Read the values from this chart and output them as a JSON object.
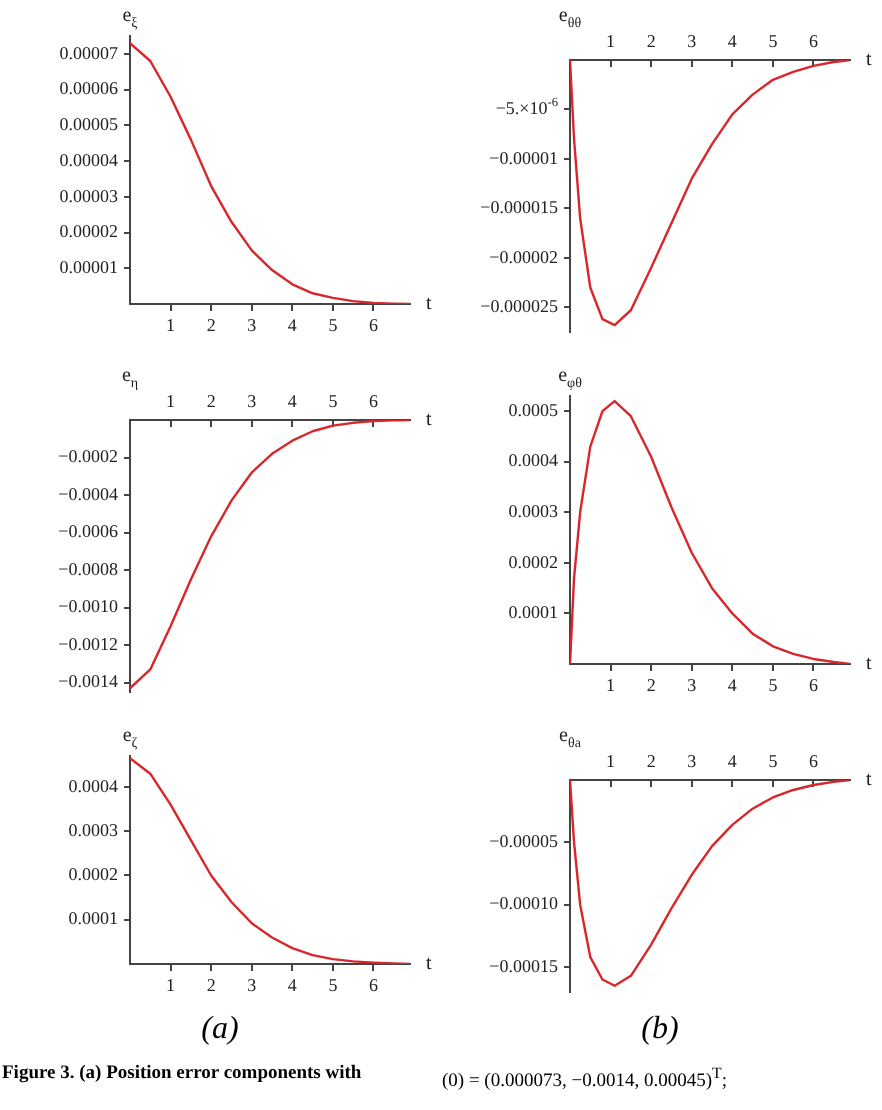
{
  "chart_data": [
    {
      "type": "line",
      "ylabel": "e$_{ξ}$",
      "xlabel": "t",
      "x": [
        0,
        0.5,
        1,
        1.5,
        2,
        2.5,
        3,
        3.5,
        4,
        4.5,
        5,
        5.5,
        6,
        6.5,
        6.9
      ],
      "series": [
        {
          "color": "#d9262b",
          "values": [
            7.3e-05,
            6.8e-05,
            5.8e-05,
            4.6e-05,
            3.3e-05,
            2.3e-05,
            1.5e-05,
            9.5e-06,
            5.5e-06,
            3e-06,
            1.7e-06,
            8e-07,
            3e-07,
            1e-07,
            0
          ]
        }
      ],
      "xlim": [
        0,
        6.9
      ],
      "ylim": [
        0,
        7.5e-05
      ],
      "xticks": [
        1,
        2,
        3,
        4,
        5,
        6
      ],
      "yticks": [
        {
          "value": 1e-05,
          "label": "0.00001"
        },
        {
          "value": 2e-05,
          "label": "0.00002"
        },
        {
          "value": 3e-05,
          "label": "0.00003"
        },
        {
          "value": 4e-05,
          "label": "0.00004"
        },
        {
          "value": 5e-05,
          "label": "0.00005"
        },
        {
          "value": 6e-05,
          "label": "0.00006"
        },
        {
          "value": 7e-05,
          "label": "0.00007"
        }
      ],
      "grid": false,
      "legend": false,
      "marker": "none",
      "line_style": "solid"
    },
    {
      "type": "line",
      "ylabel": "e$_{θθ}$",
      "xlabel": "t",
      "x": [
        0,
        0.1,
        0.25,
        0.5,
        0.8,
        1.1,
        1.5,
        2,
        2.5,
        3,
        3.5,
        4,
        4.5,
        5,
        5.5,
        6,
        6.5,
        6.9
      ],
      "series": [
        {
          "color": "#d9262b",
          "values": [
            0,
            -8e-06,
            -1.6e-05,
            -2.3e-05,
            -2.62e-05,
            -2.68e-05,
            -2.53e-05,
            -2.1e-05,
            -1.65e-05,
            -1.2e-05,
            -8.5e-06,
            -5.5e-06,
            -3.5e-06,
            -2e-06,
            -1.2e-06,
            -6e-07,
            -2e-07,
            0
          ]
        }
      ],
      "xlim": [
        0,
        6.9
      ],
      "ylim": [
        -2.75e-05,
        0
      ],
      "xticks": [
        1,
        2,
        3,
        4,
        5,
        6
      ],
      "yticks": [
        {
          "value": -5e-06,
          "label": "−5.×10$^{-6}$"
        },
        {
          "value": -1e-05,
          "label": "−0.00001"
        },
        {
          "value": -1.5e-05,
          "label": "−0.000015"
        },
        {
          "value": -2e-05,
          "label": "−0.00002"
        },
        {
          "value": -2.5e-05,
          "label": "−0.000025"
        }
      ],
      "grid": false,
      "legend": false,
      "marker": "none",
      "line_style": "solid"
    },
    {
      "type": "line",
      "ylabel": "e$_{η}$",
      "xlabel": "t",
      "x": [
        0,
        0.5,
        1,
        1.5,
        2,
        2.5,
        3,
        3.5,
        4,
        4.5,
        5,
        5.5,
        6,
        6.5,
        6.9
      ],
      "series": [
        {
          "color": "#d9262b",
          "values": [
            -0.00143,
            -0.00133,
            -0.0011,
            -0.00085,
            -0.00062,
            -0.00043,
            -0.00028,
            -0.00018,
            -0.00011,
            -6e-05,
            -3e-05,
            -1.5e-05,
            -6e-06,
            -2e-06,
            0
          ]
        }
      ],
      "xlim": [
        0,
        6.9
      ],
      "ylim": [
        -0.00145,
        0
      ],
      "xticks": [
        1,
        2,
        3,
        4,
        5,
        6
      ],
      "yticks": [
        {
          "value": -0.0002,
          "label": "−0.0002"
        },
        {
          "value": -0.0004,
          "label": "−0.0004"
        },
        {
          "value": -0.0006,
          "label": "−0.0006"
        },
        {
          "value": -0.0008,
          "label": "−0.0008"
        },
        {
          "value": -0.001,
          "label": "−0.0010"
        },
        {
          "value": -0.0012,
          "label": "−0.0012"
        },
        {
          "value": -0.0014,
          "label": "−0.0014"
        }
      ],
      "grid": false,
      "legend": false,
      "marker": "none",
      "line_style": "solid"
    },
    {
      "type": "line",
      "ylabel": "e$_{φθ}$",
      "xlabel": "t",
      "x": [
        0,
        0.1,
        0.25,
        0.5,
        0.8,
        1.1,
        1.5,
        2,
        2.5,
        3,
        3.5,
        4,
        4.5,
        5,
        5.5,
        6,
        6.5,
        6.9
      ],
      "series": [
        {
          "color": "#d9262b",
          "values": [
            0,
            0.00017,
            0.0003,
            0.00043,
            0.0005,
            0.00052,
            0.00049,
            0.00041,
            0.00031,
            0.00022,
            0.00015,
            0.0001,
            6e-05,
            3.5e-05,
            2e-05,
            1e-05,
            4e-06,
            0
          ]
        }
      ],
      "xlim": [
        0,
        6.9
      ],
      "ylim": [
        0,
        0.00053
      ],
      "xticks": [
        1,
        2,
        3,
        4,
        5,
        6
      ],
      "yticks": [
        {
          "value": 0.0001,
          "label": "0.0001"
        },
        {
          "value": 0.0002,
          "label": "0.0002"
        },
        {
          "value": 0.0003,
          "label": "0.0003"
        },
        {
          "value": 0.0004,
          "label": "0.0004"
        },
        {
          "value": 0.0005,
          "label": "0.0005"
        }
      ],
      "grid": false,
      "legend": false,
      "marker": "none",
      "line_style": "solid"
    },
    {
      "type": "line",
      "ylabel": "e$_{ζ}$",
      "xlabel": "t",
      "x": [
        0,
        0.5,
        1,
        1.5,
        2,
        2.5,
        3,
        3.5,
        4,
        4.5,
        5,
        5.5,
        6,
        6.5,
        6.9
      ],
      "series": [
        {
          "color": "#d9262b",
          "values": [
            0.000465,
            0.00043,
            0.00036,
            0.00028,
            0.0002,
            0.00014,
            9.2e-05,
            6e-05,
            3.6e-05,
            2e-05,
            1.1e-05,
            6e-06,
            3e-06,
            1e-06,
            0
          ]
        }
      ],
      "xlim": [
        0,
        6.9
      ],
      "ylim": [
        0,
        0.00047
      ],
      "xticks": [
        1,
        2,
        3,
        4,
        5,
        6
      ],
      "yticks": [
        {
          "value": 0.0001,
          "label": "0.0001"
        },
        {
          "value": 0.0002,
          "label": "0.0002"
        },
        {
          "value": 0.0003,
          "label": "0.0003"
        },
        {
          "value": 0.0004,
          "label": "0.0004"
        }
      ],
      "annotations": [
        "(a)",
        "Figure 3. (a) Position error components with"
      ],
      "grid": false,
      "legend": false,
      "marker": "none",
      "line_style": "solid"
    },
    {
      "type": "line",
      "ylabel": "e$_{θa}$",
      "xlabel": "t",
      "x": [
        0,
        0.1,
        0.25,
        0.5,
        0.8,
        1.1,
        1.5,
        2,
        2.5,
        3,
        3.5,
        4,
        4.5,
        5,
        5.5,
        6,
        6.5,
        6.9
      ],
      "series": [
        {
          "color": "#d9262b",
          "values": [
            0,
            -5e-05,
            -0.0001,
            -0.000142,
            -0.00016,
            -0.000165,
            -0.000157,
            -0.000132,
            -0.000103,
            -7.6e-05,
            -5.3e-05,
            -3.6e-05,
            -2.3e-05,
            -1.4e-05,
            -8e-06,
            -4e-06,
            -1.5e-06,
            0
          ]
        }
      ],
      "xlim": [
        0,
        6.9
      ],
      "ylim": [
        -0.00017,
        0
      ],
      "xticks": [
        1,
        2,
        3,
        4,
        5,
        6
      ],
      "yticks": [
        {
          "value": -5e-05,
          "label": "−0.00005"
        },
        {
          "value": -0.0001,
          "label": "−0.00010"
        },
        {
          "value": -0.00015,
          "label": "−0.00015"
        }
      ],
      "annotations": [
        "(b)",
        "(0) = (0.000073, −0.0014, 0.00045)$^{T}$;"
      ],
      "grid": false,
      "legend": false,
      "marker": "none",
      "line_style": "solid"
    }
  ]
}
